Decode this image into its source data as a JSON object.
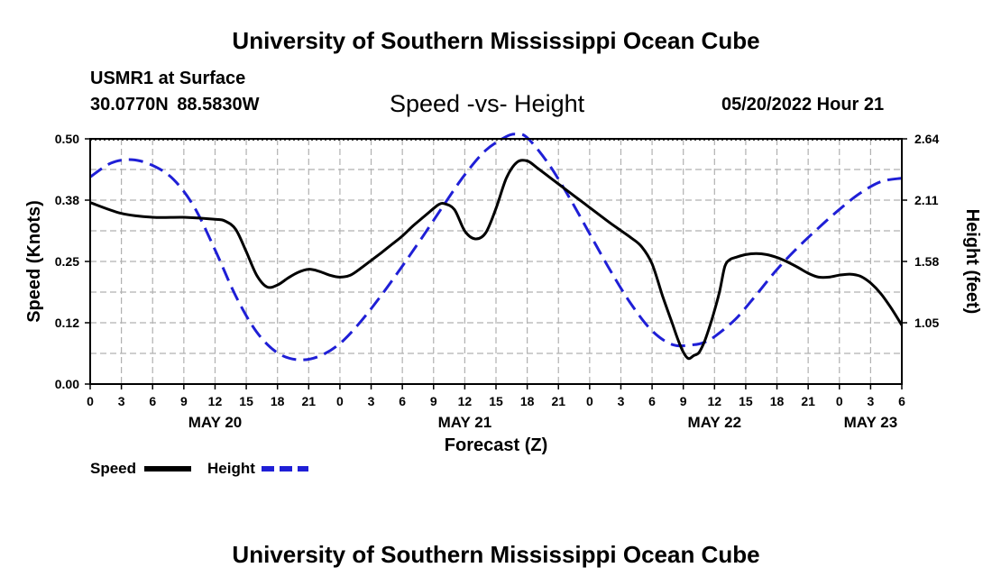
{
  "page": {
    "title": "University of Southern Mississippi Ocean Cube",
    "footer_title": "University of Southern Mississippi Ocean Cube",
    "station": {
      "name": "USMR1 at Surface",
      "latitude": "30.0770N",
      "longitude": "88.5830W"
    },
    "datetime": "05/20/2022 Hour 21"
  },
  "colors": {
    "speed": "#000000",
    "height": "#1f1fd6",
    "grid": "#b0b0b0"
  },
  "chart_data": {
    "type": "line",
    "title": "Speed -vs- Height",
    "xlabel": "Forecast (Z)",
    "ylabel": "Speed (Knots)",
    "y2label": "Height (feet)",
    "grid": true,
    "legend_position": "bottom-left",
    "x_range_hours": [
      0,
      78
    ],
    "ylim": [
      0,
      0.5
    ],
    "y2lim": [
      0.52,
      2.64
    ],
    "y_ticks": [
      "0.00",
      "0.12",
      "0.25",
      "0.38",
      "0.50"
    ],
    "y_tick_values": [
      0,
      0.125,
      0.25,
      0.375,
      0.5
    ],
    "y2_ticks": [
      "1.05",
      "1.58",
      "2.11",
      "2.64"
    ],
    "y2_tick_values": [
      1.05,
      1.58,
      2.11,
      2.64
    ],
    "x_tick_labels": [
      "0",
      "3",
      "6",
      "9",
      "12",
      "15",
      "18",
      "21",
      "0",
      "3",
      "6",
      "9",
      "12",
      "15",
      "18",
      "21",
      "0",
      "3",
      "6",
      "9",
      "12",
      "15",
      "18",
      "21",
      "0",
      "3",
      "6"
    ],
    "day_labels": [
      {
        "label": "MAY 20",
        "hour": 12
      },
      {
        "label": "MAY 21",
        "hour": 36
      },
      {
        "label": "MAY 22",
        "hour": 60
      },
      {
        "label": "MAY 23",
        "hour": 75
      }
    ],
    "series": [
      {
        "name": "Speed",
        "axis": "left",
        "style": "solid",
        "x": [
          0,
          3,
          6,
          9,
          12,
          13,
          14,
          15,
          16,
          17,
          18,
          19,
          20,
          21,
          22,
          23,
          24,
          25,
          26,
          27,
          28,
          29,
          30,
          31,
          32,
          33,
          33.5,
          34,
          35,
          36,
          37,
          38,
          39,
          40,
          41,
          42,
          43,
          44,
          45,
          46,
          47,
          48,
          50,
          52,
          53,
          54,
          55,
          56,
          56.5,
          57,
          57.5,
          58,
          58.5,
          59,
          59.5,
          60,
          60.5,
          61,
          61.5,
          62,
          63,
          64,
          65,
          66,
          67,
          68,
          69,
          70,
          71,
          72,
          73,
          74,
          75,
          76,
          77,
          78
        ],
        "values": [
          0.37,
          0.348,
          0.34,
          0.34,
          0.336,
          0.332,
          0.315,
          0.27,
          0.222,
          0.198,
          0.202,
          0.216,
          0.228,
          0.234,
          0.23,
          0.222,
          0.218,
          0.222,
          0.236,
          0.252,
          0.268,
          0.285,
          0.302,
          0.322,
          0.34,
          0.358,
          0.366,
          0.368,
          0.356,
          0.312,
          0.296,
          0.308,
          0.358,
          0.42,
          0.452,
          0.455,
          0.44,
          0.424,
          0.408,
          0.392,
          0.376,
          0.36,
          0.328,
          0.298,
          0.28,
          0.245,
          0.18,
          0.12,
          0.09,
          0.065,
          0.052,
          0.058,
          0.064,
          0.085,
          0.115,
          0.15,
          0.19,
          0.24,
          0.254,
          0.258,
          0.264,
          0.266,
          0.264,
          0.258,
          0.249,
          0.238,
          0.226,
          0.218,
          0.218,
          0.222,
          0.224,
          0.22,
          0.206,
          0.184,
          0.154,
          0.12
        ]
      },
      {
        "name": "Height",
        "axis": "right",
        "style": "dashed",
        "x": [
          0,
          2,
          4,
          6,
          8,
          10,
          12,
          14,
          16,
          18,
          20,
          22,
          24,
          26,
          28,
          30,
          32,
          34,
          36,
          38,
          40,
          41,
          42,
          44,
          46,
          48,
          50,
          52,
          54,
          56,
          58,
          59,
          60,
          62,
          64,
          66,
          68,
          70,
          72,
          74,
          76,
          78
        ],
        "values": [
          2.31,
          2.43,
          2.46,
          2.41,
          2.29,
          2.05,
          1.68,
          1.28,
          0.97,
          0.79,
          0.73,
          0.76,
          0.87,
          1.06,
          1.29,
          1.54,
          1.8,
          2.07,
          2.33,
          2.54,
          2.66,
          2.68,
          2.65,
          2.43,
          2.14,
          1.82,
          1.5,
          1.21,
          0.98,
          0.86,
          0.86,
          0.88,
          0.93,
          1.08,
          1.29,
          1.51,
          1.7,
          1.87,
          2.03,
          2.17,
          2.27,
          2.3
        ]
      }
    ]
  }
}
